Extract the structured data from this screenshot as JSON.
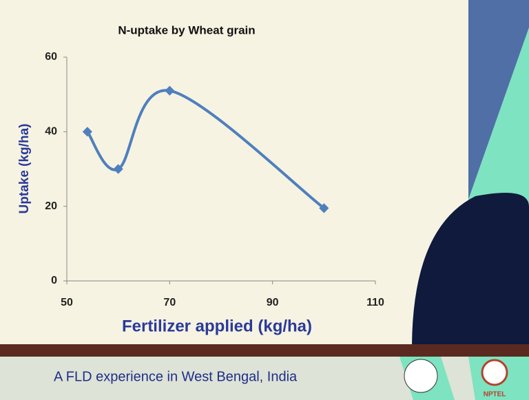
{
  "chart_data": {
    "type": "line",
    "title": "N-uptake by Wheat grain",
    "x_label": "Fertilizer applied (kg/ha)",
    "y_label": "Uptake (kg/ha)",
    "series": [
      {
        "color": "#4f7fbd",
        "x": [
          54,
          60,
          70,
          100
        ],
        "values": [
          40,
          30,
          51,
          19.5
        ]
      }
    ],
    "xlim": [
      50,
      110
    ],
    "xticks": [
      50,
      70,
      90,
      110
    ],
    "ylim": [
      0,
      60
    ],
    "yticks": [
      0,
      20,
      40,
      60
    ],
    "smooth": true
  },
  "footer": {
    "text": "A FLD experience in West Bengal, India",
    "logo_label": "NPTEL"
  }
}
